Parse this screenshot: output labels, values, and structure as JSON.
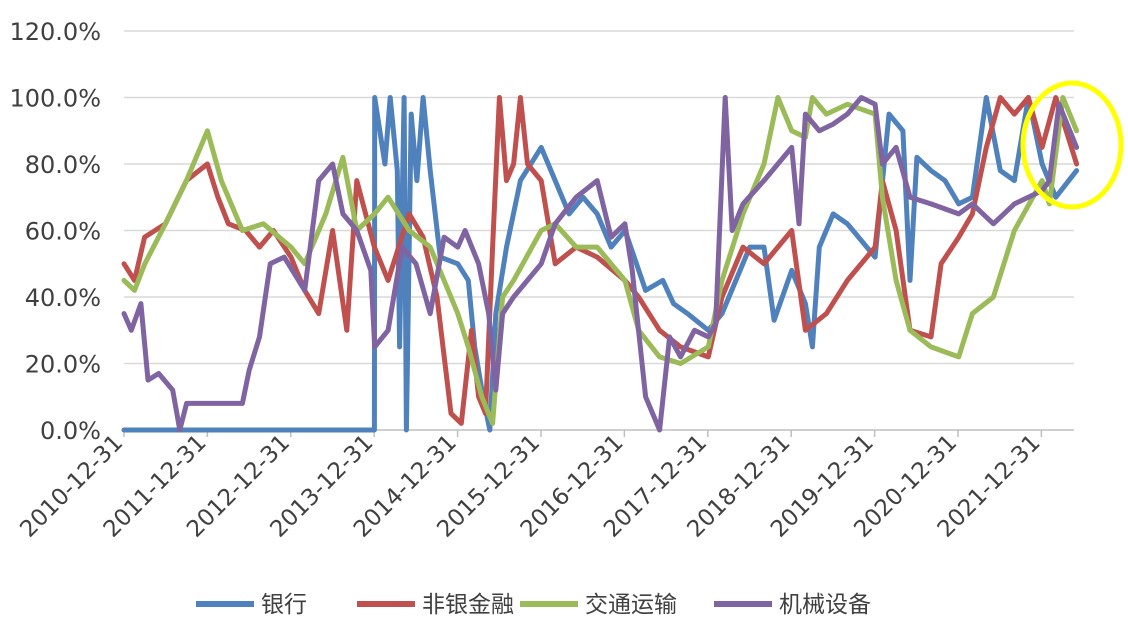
{
  "chart_data": {
    "type": "line",
    "title": "",
    "xlabel": "",
    "ylabel": "",
    "ylim": [
      0,
      120
    ],
    "y_ticks": [
      "0.0%",
      "20.0%",
      "40.0%",
      "60.0%",
      "80.0%",
      "100.0%",
      "120.0%"
    ],
    "x_ticks": [
      "2010-12-31",
      "2011-12-31",
      "2012-12-31",
      "2013-12-31",
      "2014-12-31",
      "2015-12-31",
      "2016-12-31",
      "2017-12-31",
      "2018-12-31",
      "2019-12-31",
      "2020-12-31",
      "2021-12-31"
    ],
    "xlim": [
      "2010-12-31",
      "2022-05-31"
    ],
    "grid": "horizontal",
    "legend_position": "bottom",
    "annotation": {
      "shape": "ellipse",
      "color": "#FFFF00",
      "around": "2022 end of series"
    },
    "series": [
      {
        "name": "银行",
        "color": "#4F81BD",
        "points": [
          [
            "2010-12-31",
            0
          ],
          [
            "2012-06-30",
            0
          ],
          [
            "2013-12-31",
            0
          ],
          [
            "2014-01-01",
            100
          ],
          [
            "2014-02-15",
            80
          ],
          [
            "2014-03-10",
            100
          ],
          [
            "2014-04-10",
            78
          ],
          [
            "2014-04-20",
            25
          ],
          [
            "2014-05-10",
            100
          ],
          [
            "2014-05-20",
            0
          ],
          [
            "2014-06-10",
            95
          ],
          [
            "2014-07-05",
            75
          ],
          [
            "2014-08-01",
            100
          ],
          [
            "2014-09-01",
            78
          ],
          [
            "2014-10-15",
            52
          ],
          [
            "2014-12-31",
            50
          ],
          [
            "2015-02-15",
            45
          ],
          [
            "2015-03-15",
            25
          ],
          [
            "2015-04-20",
            10
          ],
          [
            "2015-05-20",
            0
          ],
          [
            "2015-06-15",
            35
          ],
          [
            "2015-08-01",
            55
          ],
          [
            "2015-10-01",
            75
          ],
          [
            "2015-12-31",
            85
          ],
          [
            "2016-03-01",
            75
          ],
          [
            "2016-05-01",
            65
          ],
          [
            "2016-07-01",
            70
          ],
          [
            "2016-09-01",
            65
          ],
          [
            "2016-11-01",
            55
          ],
          [
            "2017-01-01",
            60
          ],
          [
            "2017-04-01",
            42
          ],
          [
            "2017-06-15",
            45
          ],
          [
            "2017-08-01",
            38
          ],
          [
            "2017-10-01",
            35
          ],
          [
            "2017-12-31",
            30
          ],
          [
            "2018-03-01",
            35
          ],
          [
            "2018-05-01",
            45
          ],
          [
            "2018-07-01",
            55
          ],
          [
            "2018-09-01",
            55
          ],
          [
            "2018-10-15",
            33
          ],
          [
            "2018-12-31",
            48
          ],
          [
            "2019-03-01",
            38
          ],
          [
            "2019-04-01",
            25
          ],
          [
            "2019-05-01",
            55
          ],
          [
            "2019-07-01",
            65
          ],
          [
            "2019-09-01",
            62
          ],
          [
            "2019-12-31",
            52
          ],
          [
            "2020-03-01",
            95
          ],
          [
            "2020-05-01",
            90
          ],
          [
            "2020-06-01",
            45
          ],
          [
            "2020-07-01",
            82
          ],
          [
            "2020-09-01",
            78
          ],
          [
            "2020-11-01",
            75
          ],
          [
            "2020-12-31",
            68
          ],
          [
            "2021-03-01",
            70
          ],
          [
            "2021-05-01",
            100
          ],
          [
            "2021-07-01",
            78
          ],
          [
            "2021-09-01",
            75
          ],
          [
            "2021-11-01",
            100
          ],
          [
            "2021-12-31",
            80
          ],
          [
            "2022-03-01",
            70
          ],
          [
            "2022-05-31",
            78
          ]
        ]
      },
      {
        "name": "非银金融",
        "color": "#C0504D",
        "points": [
          [
            "2010-12-31",
            50
          ],
          [
            "2011-02-15",
            45
          ],
          [
            "2011-03-31",
            58
          ],
          [
            "2011-06-30",
            62
          ],
          [
            "2011-09-30",
            75
          ],
          [
            "2011-12-31",
            80
          ],
          [
            "2012-02-15",
            70
          ],
          [
            "2012-04-01",
            62
          ],
          [
            "2012-06-15",
            60
          ],
          [
            "2012-08-15",
            55
          ],
          [
            "2012-10-15",
            60
          ],
          [
            "2012-12-31",
            52
          ],
          [
            "2013-03-01",
            42
          ],
          [
            "2013-05-01",
            35
          ],
          [
            "2013-07-01",
            60
          ],
          [
            "2013-09-01",
            30
          ],
          [
            "2013-10-15",
            75
          ],
          [
            "2013-12-31",
            55
          ],
          [
            "2014-03-01",
            45
          ],
          [
            "2014-06-01",
            65
          ],
          [
            "2014-08-01",
            58
          ],
          [
            "2014-10-01",
            40
          ],
          [
            "2014-12-01",
            5
          ],
          [
            "2015-01-15",
            2
          ],
          [
            "2015-03-01",
            30
          ],
          [
            "2015-04-01",
            10
          ],
          [
            "2015-05-01",
            5
          ],
          [
            "2015-06-01",
            55
          ],
          [
            "2015-07-01",
            100
          ],
          [
            "2015-08-01",
            75
          ],
          [
            "2015-09-01",
            80
          ],
          [
            "2015-10-01",
            100
          ],
          [
            "2015-11-01",
            80
          ],
          [
            "2015-12-31",
            75
          ],
          [
            "2016-03-01",
            50
          ],
          [
            "2016-06-01",
            55
          ],
          [
            "2016-09-01",
            52
          ],
          [
            "2016-12-31",
            45
          ],
          [
            "2017-03-01",
            40
          ],
          [
            "2017-06-01",
            30
          ],
          [
            "2017-09-01",
            25
          ],
          [
            "2017-12-31",
            22
          ],
          [
            "2018-03-01",
            40
          ],
          [
            "2018-06-01",
            55
          ],
          [
            "2018-09-01",
            50
          ],
          [
            "2018-12-31",
            60
          ],
          [
            "2019-03-01",
            30
          ],
          [
            "2019-06-01",
            35
          ],
          [
            "2019-09-01",
            45
          ],
          [
            "2019-12-31",
            55
          ],
          [
            "2020-02-01",
            75
          ],
          [
            "2020-04-01",
            60
          ],
          [
            "2020-06-01",
            30
          ],
          [
            "2020-09-01",
            28
          ],
          [
            "2020-10-15",
            50
          ],
          [
            "2020-12-31",
            58
          ],
          [
            "2021-03-01",
            65
          ],
          [
            "2021-05-01",
            85
          ],
          [
            "2021-07-01",
            100
          ],
          [
            "2021-09-01",
            95
          ],
          [
            "2021-11-01",
            100
          ],
          [
            "2021-12-31",
            85
          ],
          [
            "2022-03-01",
            100
          ],
          [
            "2022-05-31",
            80
          ]
        ]
      },
      {
        "name": "交通运输",
        "color": "#9BBB59",
        "points": [
          [
            "2010-12-31",
            45
          ],
          [
            "2011-02-15",
            42
          ],
          [
            "2011-04-01",
            50
          ],
          [
            "2011-06-30",
            62
          ],
          [
            "2011-09-30",
            75
          ],
          [
            "2011-12-31",
            90
          ],
          [
            "2012-03-01",
            75
          ],
          [
            "2012-06-01",
            60
          ],
          [
            "2012-09-01",
            62
          ],
          [
            "2012-12-31",
            55
          ],
          [
            "2013-03-01",
            50
          ],
          [
            "2013-06-01",
            65
          ],
          [
            "2013-08-15",
            82
          ],
          [
            "2013-10-15",
            60
          ],
          [
            "2013-12-31",
            65
          ],
          [
            "2014-03-01",
            70
          ],
          [
            "2014-06-01",
            60
          ],
          [
            "2014-09-01",
            55
          ],
          [
            "2014-12-31",
            35
          ],
          [
            "2015-02-15",
            25
          ],
          [
            "2015-04-15",
            10
          ],
          [
            "2015-06-01",
            2
          ],
          [
            "2015-07-15",
            40
          ],
          [
            "2015-09-01",
            45
          ],
          [
            "2015-12-31",
            60
          ],
          [
            "2016-03-01",
            62
          ],
          [
            "2016-06-01",
            55
          ],
          [
            "2016-09-01",
            55
          ],
          [
            "2016-12-31",
            45
          ],
          [
            "2017-03-01",
            30
          ],
          [
            "2017-06-01",
            22
          ],
          [
            "2017-09-01",
            20
          ],
          [
            "2017-12-31",
            25
          ],
          [
            "2018-03-01",
            45
          ],
          [
            "2018-06-01",
            65
          ],
          [
            "2018-09-01",
            80
          ],
          [
            "2018-11-01",
            100
          ],
          [
            "2018-12-31",
            90
          ],
          [
            "2019-03-01",
            88
          ],
          [
            "2019-04-01",
            100
          ],
          [
            "2019-06-01",
            95
          ],
          [
            "2019-09-01",
            98
          ],
          [
            "2019-12-31",
            95
          ],
          [
            "2020-02-01",
            70
          ],
          [
            "2020-04-01",
            45
          ],
          [
            "2020-06-01",
            30
          ],
          [
            "2020-09-01",
            25
          ],
          [
            "2020-12-31",
            22
          ],
          [
            "2021-03-01",
            35
          ],
          [
            "2021-06-01",
            40
          ],
          [
            "2021-09-01",
            60
          ],
          [
            "2021-12-31",
            75
          ],
          [
            "2022-02-01",
            68
          ],
          [
            "2022-04-01",
            100
          ],
          [
            "2022-05-31",
            90
          ]
        ]
      },
      {
        "name": "机械设备",
        "color": "#8064A2",
        "points": [
          [
            "2010-12-31",
            35
          ],
          [
            "2011-02-01",
            30
          ],
          [
            "2011-03-15",
            38
          ],
          [
            "2011-04-15",
            15
          ],
          [
            "2011-06-01",
            17
          ],
          [
            "2011-08-01",
            12
          ],
          [
            "2011-09-01",
            0
          ],
          [
            "2011-10-01",
            8
          ],
          [
            "2012-01-01",
            8
          ],
          [
            "2012-03-01",
            8
          ],
          [
            "2012-06-01",
            8
          ],
          [
            "2012-07-01",
            18
          ],
          [
            "2012-08-15",
            28
          ],
          [
            "2012-10-01",
            50
          ],
          [
            "2012-12-01",
            52
          ],
          [
            "2013-03-01",
            42
          ],
          [
            "2013-05-01",
            75
          ],
          [
            "2013-07-01",
            80
          ],
          [
            "2013-08-15",
            65
          ],
          [
            "2013-10-15",
            60
          ],
          [
            "2013-12-15",
            48
          ],
          [
            "2014-01-01",
            25
          ],
          [
            "2014-03-01",
            30
          ],
          [
            "2014-05-01",
            55
          ],
          [
            "2014-07-01",
            50
          ],
          [
            "2014-09-01",
            35
          ],
          [
            "2014-11-01",
            58
          ],
          [
            "2014-12-31",
            55
          ],
          [
            "2015-02-01",
            60
          ],
          [
            "2015-04-01",
            50
          ],
          [
            "2015-05-15",
            35
          ],
          [
            "2015-06-15",
            12
          ],
          [
            "2015-07-15",
            35
          ],
          [
            "2015-09-01",
            40
          ],
          [
            "2015-12-31",
            50
          ],
          [
            "2016-03-01",
            62
          ],
          [
            "2016-06-01",
            70
          ],
          [
            "2016-09-01",
            75
          ],
          [
            "2016-11-01",
            58
          ],
          [
            "2016-12-31",
            62
          ],
          [
            "2017-02-01",
            48
          ],
          [
            "2017-04-01",
            10
          ],
          [
            "2017-06-01",
            0
          ],
          [
            "2017-07-15",
            28
          ],
          [
            "2017-09-01",
            22
          ],
          [
            "2017-11-01",
            30
          ],
          [
            "2017-12-31",
            28
          ],
          [
            "2018-02-01",
            32
          ],
          [
            "2018-03-15",
            100
          ],
          [
            "2018-04-15",
            60
          ],
          [
            "2018-06-01",
            68
          ],
          [
            "2018-09-01",
            75
          ],
          [
            "2018-12-31",
            85
          ],
          [
            "2019-02-01",
            62
          ],
          [
            "2019-03-01",
            95
          ],
          [
            "2019-05-01",
            90
          ],
          [
            "2019-07-01",
            92
          ],
          [
            "2019-09-01",
            95
          ],
          [
            "2019-11-01",
            100
          ],
          [
            "2019-12-31",
            98
          ],
          [
            "2020-02-01",
            80
          ],
          [
            "2020-04-01",
            85
          ],
          [
            "2020-06-01",
            70
          ],
          [
            "2020-09-01",
            68
          ],
          [
            "2020-12-31",
            65
          ],
          [
            "2021-03-01",
            68
          ],
          [
            "2021-06-01",
            62
          ],
          [
            "2021-09-01",
            68
          ],
          [
            "2021-12-31",
            72
          ],
          [
            "2022-02-01",
            75
          ],
          [
            "2022-03-15",
            98
          ],
          [
            "2022-05-31",
            85
          ]
        ]
      }
    ]
  }
}
